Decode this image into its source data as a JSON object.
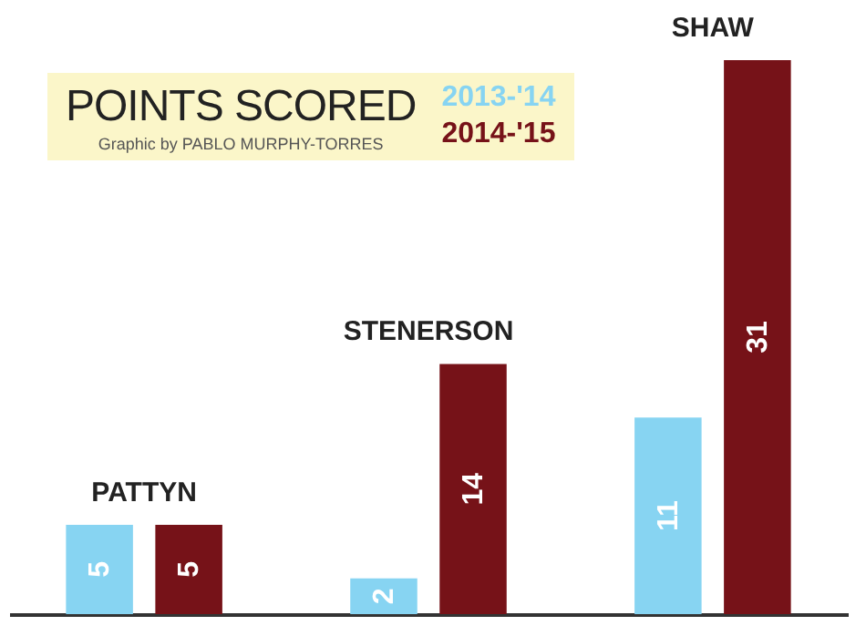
{
  "chart_data": {
    "type": "bar",
    "title": "POINTS SCORED",
    "annotations": [
      "Graphic by PABLO MURPHY-TORRES"
    ],
    "categories": [
      "PATTYN",
      "STENERSON",
      "SHAW"
    ],
    "series": [
      {
        "name": "2013-'14",
        "color": "#87d4f2",
        "values": [
          5,
          2,
          11
        ]
      },
      {
        "name": "2014-'15",
        "color": "#761218",
        "values": [
          5,
          14,
          31
        ]
      }
    ],
    "data_labels": true,
    "legend": "top",
    "grid": false
  }
}
